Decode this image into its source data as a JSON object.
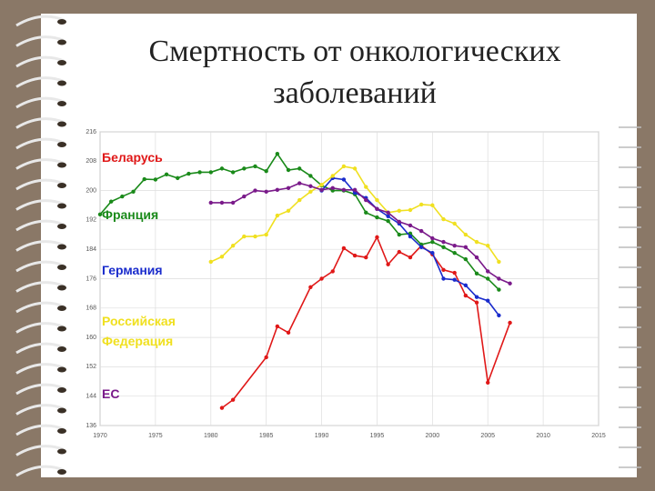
{
  "chart_data": {
    "type": "line",
    "title": "Смертность от онкологических заболеваний",
    "xlim": [
      1970,
      2015
    ],
    "xticks": [
      1970,
      1975,
      1980,
      1985,
      1990,
      1995,
      2000,
      2005,
      2010,
      2015
    ],
    "ylim": [
      136,
      216
    ],
    "yticks": [
      136,
      144,
      152,
      160,
      168,
      176,
      184,
      192,
      200,
      208,
      216
    ],
    "grid": true,
    "series": [
      {
        "name": "Беларусь",
        "color": "#e01818",
        "x": [
          1981,
          1982,
          1985,
          1986,
          1987,
          1989,
          1990,
          1991,
          1992,
          1993,
          1994,
          1995,
          1996,
          1997,
          1998,
          1999,
          2000,
          2001,
          2002,
          2003,
          2004,
          2005,
          2007
        ],
        "values": [
          140.8,
          143,
          154.6,
          163,
          161.3,
          173.7,
          176,
          178,
          184.3,
          182.3,
          181.8,
          187.3,
          179.9,
          183.3,
          181.8,
          185,
          182.6,
          178.4,
          177.6,
          171.4,
          169.5,
          147.7,
          164
        ]
      },
      {
        "name": "Франция",
        "color": "#1a8a1a",
        "x": [
          1970,
          1971,
          1972,
          1973,
          1974,
          1975,
          1976,
          1977,
          1978,
          1979,
          1980,
          1981,
          1982,
          1983,
          1984,
          1985,
          1986,
          1987,
          1988,
          1989,
          1990,
          1991,
          1992,
          1993,
          1994,
          1995,
          1996,
          1997,
          1998,
          1999,
          2000,
          2001,
          2002,
          2003,
          2004,
          2005,
          2006
        ],
        "values": [
          193.5,
          197,
          198.4,
          199.7,
          203.1,
          203,
          204.4,
          203.4,
          204.6,
          205,
          205,
          206,
          205,
          206,
          206.6,
          205.3,
          210,
          205.6,
          206,
          204,
          201.4,
          200,
          200,
          199,
          194,
          192.7,
          191.7,
          188,
          188.3,
          185.3,
          186,
          184.6,
          183,
          181.3,
          177.4,
          176,
          173
        ]
      },
      {
        "name": "Германия",
        "color": "#1a2ccc",
        "x": [
          1990,
          1991,
          1992,
          1993,
          1994,
          1995,
          1996,
          1997,
          1998,
          1999,
          2000,
          2001,
          2002,
          2003,
          2004,
          2005,
          2006
        ],
        "values": [
          200,
          203.4,
          203,
          199.4,
          198,
          195,
          193,
          191,
          187.5,
          184.6,
          183,
          176,
          175.7,
          174.2,
          171,
          170,
          166
        ]
      },
      {
        "name": "Российская Федерация",
        "color": "#f0e020",
        "x": [
          1980,
          1981,
          1982,
          1983,
          1984,
          1985,
          1986,
          1987,
          1988,
          1989,
          1990,
          1991,
          1992,
          1993,
          1994,
          1995,
          1996,
          1997,
          1998,
          1999,
          2000,
          2001,
          2002,
          2003,
          2004,
          2005,
          2006
        ],
        "values": [
          180.6,
          182,
          185,
          187.5,
          187.5,
          188,
          193.2,
          194.5,
          197.4,
          199.7,
          201.6,
          204,
          206.6,
          206,
          201,
          197.4,
          194,
          194.5,
          194.7,
          196.2,
          196,
          192.2,
          191,
          188,
          186,
          185,
          180.6
        ]
      },
      {
        "name": "ЕС",
        "color": "#7a1a8a",
        "x": [
          1980,
          1981,
          1982,
          1983,
          1984,
          1985,
          1986,
          1987,
          1988,
          1989,
          1990,
          1991,
          1992,
          1993,
          1994,
          1995,
          1996,
          1997,
          1998,
          1999,
          2000,
          2001,
          2002,
          2003,
          2004,
          2005,
          2006,
          2007
        ],
        "values": [
          196.7,
          196.7,
          196.7,
          198.4,
          200,
          199.7,
          200.2,
          200.7,
          202,
          201.2,
          200.2,
          200.7,
          200.2,
          200.2,
          197.4,
          195,
          194,
          191.5,
          190.5,
          189,
          187,
          186,
          185,
          184.6,
          181.8,
          178,
          176,
          174.7
        ]
      }
    ]
  }
}
